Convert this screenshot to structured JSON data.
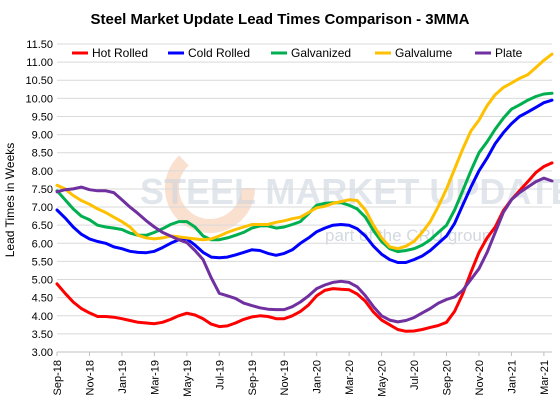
{
  "chart_data": {
    "type": "line",
    "title": "Steel Market Update Lead Times Comparison - 3MMA",
    "ylabel": "Lead Times in Weeks",
    "xlabel": "",
    "ylim": [
      3.0,
      11.5
    ],
    "yticks": [
      "3.00",
      "3.50",
      "4.00",
      "4.50",
      "5.00",
      "5.50",
      "6.00",
      "6.50",
      "7.00",
      "7.50",
      "8.00",
      "8.50",
      "9.00",
      "9.50",
      "10.00",
      "10.50",
      "11.00",
      "11.50"
    ],
    "grid": "horizontal",
    "legend_position": "top",
    "x_tick_labels": [
      "Sep-18",
      "Nov-18",
      "Jan-19",
      "Mar-19",
      "May-19",
      "Jul-19",
      "Sep-19",
      "Nov-19",
      "Jan-20",
      "Mar-20",
      "May-20",
      "Jul-20",
      "Sep-20",
      "Nov-20",
      "Jan-21",
      "Mar-21"
    ],
    "x_tick_positions": [
      0,
      2,
      4,
      6,
      8,
      10,
      12,
      14,
      16,
      18,
      20,
      22,
      24,
      26,
      28,
      30
    ],
    "watermark": {
      "line1": "STEEL MARKET UPDATE",
      "line2": "part of the CRU group"
    },
    "series": [
      {
        "name": "Hot Rolled",
        "color": "#ff0000",
        "points": [
          [
            0,
            4.88
          ],
          [
            0.5,
            4.62
          ],
          [
            1,
            4.38
          ],
          [
            1.5,
            4.2
          ],
          [
            2,
            4.08
          ],
          [
            2.5,
            3.98
          ],
          [
            3,
            3.98
          ],
          [
            3.5,
            3.96
          ],
          [
            4,
            3.92
          ],
          [
            4.5,
            3.87
          ],
          [
            5,
            3.82
          ],
          [
            5.5,
            3.8
          ],
          [
            6,
            3.78
          ],
          [
            6.5,
            3.82
          ],
          [
            7,
            3.9
          ],
          [
            7.5,
            4.0
          ],
          [
            8,
            4.07
          ],
          [
            8.5,
            4.02
          ],
          [
            9,
            3.92
          ],
          [
            9.5,
            3.77
          ],
          [
            10,
            3.7
          ],
          [
            10.5,
            3.72
          ],
          [
            11,
            3.8
          ],
          [
            11.5,
            3.9
          ],
          [
            12,
            3.97
          ],
          [
            12.5,
            4.0
          ],
          [
            13,
            3.98
          ],
          [
            13.5,
            3.92
          ],
          [
            14,
            3.92
          ],
          [
            14.5,
            4.0
          ],
          [
            15,
            4.12
          ],
          [
            15.5,
            4.3
          ],
          [
            16,
            4.55
          ],
          [
            16.5,
            4.7
          ],
          [
            17,
            4.75
          ],
          [
            17.5,
            4.73
          ],
          [
            18,
            4.72
          ],
          [
            18.5,
            4.6
          ],
          [
            19,
            4.4
          ],
          [
            19.5,
            4.1
          ],
          [
            20,
            3.88
          ],
          [
            20.5,
            3.75
          ],
          [
            21,
            3.62
          ],
          [
            21.5,
            3.57
          ],
          [
            22,
            3.58
          ],
          [
            22.5,
            3.62
          ],
          [
            23,
            3.68
          ],
          [
            23.5,
            3.73
          ],
          [
            24,
            3.82
          ],
          [
            24.5,
            4.12
          ],
          [
            25,
            4.6
          ],
          [
            25.5,
            5.2
          ],
          [
            26,
            5.75
          ],
          [
            26.5,
            6.15
          ],
          [
            27,
            6.45
          ],
          [
            27.5,
            6.9
          ],
          [
            28,
            7.2
          ],
          [
            28.5,
            7.45
          ],
          [
            29,
            7.7
          ],
          [
            29.5,
            7.95
          ],
          [
            30,
            8.12
          ],
          [
            30.5,
            8.22
          ]
        ]
      },
      {
        "name": "Cold Rolled",
        "color": "#0000ff",
        "points": [
          [
            0,
            6.92
          ],
          [
            0.5,
            6.7
          ],
          [
            1,
            6.45
          ],
          [
            1.5,
            6.25
          ],
          [
            2,
            6.12
          ],
          [
            2.5,
            6.05
          ],
          [
            3,
            6.0
          ],
          [
            3.5,
            5.9
          ],
          [
            4,
            5.85
          ],
          [
            4.5,
            5.78
          ],
          [
            5,
            5.75
          ],
          [
            5.5,
            5.74
          ],
          [
            6,
            5.78
          ],
          [
            6.5,
            5.88
          ],
          [
            7,
            6.0
          ],
          [
            7.5,
            6.1
          ],
          [
            8,
            6.12
          ],
          [
            8.5,
            5.95
          ],
          [
            9,
            5.75
          ],
          [
            9.5,
            5.62
          ],
          [
            10,
            5.6
          ],
          [
            10.5,
            5.62
          ],
          [
            11,
            5.68
          ],
          [
            11.5,
            5.75
          ],
          [
            12,
            5.82
          ],
          [
            12.5,
            5.8
          ],
          [
            13,
            5.72
          ],
          [
            13.5,
            5.67
          ],
          [
            14,
            5.72
          ],
          [
            14.5,
            5.82
          ],
          [
            15,
            6.0
          ],
          [
            15.5,
            6.15
          ],
          [
            16,
            6.32
          ],
          [
            16.5,
            6.42
          ],
          [
            17,
            6.5
          ],
          [
            17.5,
            6.52
          ],
          [
            18,
            6.5
          ],
          [
            18.5,
            6.4
          ],
          [
            19,
            6.2
          ],
          [
            19.5,
            5.92
          ],
          [
            20,
            5.7
          ],
          [
            20.5,
            5.55
          ],
          [
            21,
            5.47
          ],
          [
            21.5,
            5.47
          ],
          [
            22,
            5.55
          ],
          [
            22.5,
            5.65
          ],
          [
            23,
            5.8
          ],
          [
            23.5,
            6.0
          ],
          [
            24,
            6.2
          ],
          [
            24.5,
            6.55
          ],
          [
            25,
            7.05
          ],
          [
            25.5,
            7.55
          ],
          [
            26,
            8.0
          ],
          [
            26.5,
            8.35
          ],
          [
            27,
            8.75
          ],
          [
            27.5,
            9.05
          ],
          [
            28,
            9.3
          ],
          [
            28.5,
            9.5
          ],
          [
            29,
            9.62
          ],
          [
            29.5,
            9.75
          ],
          [
            30,
            9.88
          ],
          [
            30.5,
            9.95
          ]
        ]
      },
      {
        "name": "Galvanized",
        "color": "#00b050",
        "points": [
          [
            0,
            7.45
          ],
          [
            0.5,
            7.2
          ],
          [
            1,
            6.95
          ],
          [
            1.5,
            6.75
          ],
          [
            2,
            6.65
          ],
          [
            2.5,
            6.5
          ],
          [
            3,
            6.45
          ],
          [
            3.5,
            6.42
          ],
          [
            4,
            6.38
          ],
          [
            4.5,
            6.28
          ],
          [
            5,
            6.22
          ],
          [
            5.5,
            6.22
          ],
          [
            6,
            6.3
          ],
          [
            6.5,
            6.4
          ],
          [
            7,
            6.52
          ],
          [
            7.5,
            6.6
          ],
          [
            8,
            6.6
          ],
          [
            8.5,
            6.45
          ],
          [
            9,
            6.2
          ],
          [
            9.5,
            6.1
          ],
          [
            10,
            6.1
          ],
          [
            10.5,
            6.15
          ],
          [
            11,
            6.22
          ],
          [
            11.5,
            6.3
          ],
          [
            12,
            6.42
          ],
          [
            12.5,
            6.48
          ],
          [
            13,
            6.48
          ],
          [
            13.5,
            6.42
          ],
          [
            14,
            6.45
          ],
          [
            14.5,
            6.52
          ],
          [
            15,
            6.6
          ],
          [
            15.5,
            6.82
          ],
          [
            16,
            7.05
          ],
          [
            16.5,
            7.1
          ],
          [
            17,
            7.12
          ],
          [
            17.5,
            7.12
          ],
          [
            18,
            7.05
          ],
          [
            18.5,
            6.95
          ],
          [
            19,
            6.72
          ],
          [
            19.5,
            6.35
          ],
          [
            20,
            6.05
          ],
          [
            20.5,
            5.85
          ],
          [
            21,
            5.77
          ],
          [
            21.5,
            5.8
          ],
          [
            22,
            5.85
          ],
          [
            22.5,
            5.95
          ],
          [
            23,
            6.1
          ],
          [
            23.5,
            6.3
          ],
          [
            24,
            6.5
          ],
          [
            24.5,
            6.92
          ],
          [
            25,
            7.45
          ],
          [
            25.5,
            8.0
          ],
          [
            26,
            8.5
          ],
          [
            26.5,
            8.8
          ],
          [
            27,
            9.15
          ],
          [
            27.5,
            9.45
          ],
          [
            28,
            9.7
          ],
          [
            28.5,
            9.82
          ],
          [
            29,
            9.95
          ],
          [
            29.5,
            10.05
          ],
          [
            30,
            10.12
          ],
          [
            30.5,
            10.14
          ]
        ]
      },
      {
        "name": "Galvalume",
        "color": "#ffc000",
        "points": [
          [
            0,
            7.6
          ],
          [
            0.5,
            7.5
          ],
          [
            1,
            7.32
          ],
          [
            1.5,
            7.18
          ],
          [
            2,
            7.08
          ],
          [
            2.5,
            6.95
          ],
          [
            3,
            6.85
          ],
          [
            3.5,
            6.72
          ],
          [
            4,
            6.6
          ],
          [
            4.5,
            6.45
          ],
          [
            5,
            6.22
          ],
          [
            5.5,
            6.15
          ],
          [
            6,
            6.12
          ],
          [
            6.5,
            6.15
          ],
          [
            7,
            6.2
          ],
          [
            7.5,
            6.18
          ],
          [
            8,
            6.15
          ],
          [
            8.5,
            6.12
          ],
          [
            9,
            6.1
          ],
          [
            9.5,
            6.12
          ],
          [
            10,
            6.2
          ],
          [
            10.5,
            6.3
          ],
          [
            11,
            6.38
          ],
          [
            11.5,
            6.45
          ],
          [
            12,
            6.52
          ],
          [
            12.5,
            6.52
          ],
          [
            13,
            6.52
          ],
          [
            13.5,
            6.58
          ],
          [
            14,
            6.62
          ],
          [
            14.5,
            6.68
          ],
          [
            15,
            6.72
          ],
          [
            15.5,
            6.85
          ],
          [
            16,
            6.98
          ],
          [
            16.5,
            7.02
          ],
          [
            17,
            7.1
          ],
          [
            17.5,
            7.15
          ],
          [
            18,
            7.2
          ],
          [
            18.5,
            7.18
          ],
          [
            19,
            6.92
          ],
          [
            19.5,
            6.5
          ],
          [
            20,
            6.15
          ],
          [
            20.5,
            5.9
          ],
          [
            21,
            5.85
          ],
          [
            21.5,
            5.92
          ],
          [
            22,
            6.05
          ],
          [
            22.5,
            6.3
          ],
          [
            23,
            6.6
          ],
          [
            23.5,
            7.02
          ],
          [
            24,
            7.5
          ],
          [
            24.5,
            8.05
          ],
          [
            25,
            8.6
          ],
          [
            25.5,
            9.1
          ],
          [
            26,
            9.4
          ],
          [
            26.5,
            9.8
          ],
          [
            27,
            10.1
          ],
          [
            27.5,
            10.3
          ],
          [
            28,
            10.42
          ],
          [
            28.5,
            10.55
          ],
          [
            29,
            10.65
          ],
          [
            29.5,
            10.85
          ],
          [
            30,
            11.05
          ],
          [
            30.5,
            11.22
          ]
        ]
      },
      {
        "name": "Plate",
        "color": "#7030a0",
        "points": [
          [
            0,
            7.42
          ],
          [
            0.5,
            7.48
          ],
          [
            1,
            7.5
          ],
          [
            1.5,
            7.55
          ],
          [
            2,
            7.48
          ],
          [
            2.5,
            7.45
          ],
          [
            3,
            7.45
          ],
          [
            3.5,
            7.4
          ],
          [
            4,
            7.2
          ],
          [
            4.5,
            7.0
          ],
          [
            5,
            6.82
          ],
          [
            5.5,
            6.62
          ],
          [
            6,
            6.45
          ],
          [
            6.5,
            6.3
          ],
          [
            7,
            6.2
          ],
          [
            7.5,
            6.1
          ],
          [
            8,
            6.02
          ],
          [
            8.5,
            5.8
          ],
          [
            9,
            5.55
          ],
          [
            9.5,
            5.05
          ],
          [
            10,
            4.62
          ],
          [
            10.5,
            4.55
          ],
          [
            11,
            4.48
          ],
          [
            11.5,
            4.35
          ],
          [
            12,
            4.28
          ],
          [
            12.5,
            4.22
          ],
          [
            13,
            4.18
          ],
          [
            13.5,
            4.17
          ],
          [
            14,
            4.17
          ],
          [
            14.5,
            4.25
          ],
          [
            15,
            4.38
          ],
          [
            15.5,
            4.55
          ],
          [
            16,
            4.75
          ],
          [
            16.5,
            4.85
          ],
          [
            17,
            4.92
          ],
          [
            17.5,
            4.95
          ],
          [
            18,
            4.92
          ],
          [
            18.5,
            4.8
          ],
          [
            19,
            4.55
          ],
          [
            19.5,
            4.25
          ],
          [
            20,
            4.0
          ],
          [
            20.5,
            3.88
          ],
          [
            21,
            3.83
          ],
          [
            21.5,
            3.87
          ],
          [
            22,
            3.95
          ],
          [
            22.5,
            4.08
          ],
          [
            23,
            4.2
          ],
          [
            23.5,
            4.35
          ],
          [
            24,
            4.45
          ],
          [
            24.5,
            4.52
          ],
          [
            25,
            4.7
          ],
          [
            25.5,
            5.0
          ],
          [
            26,
            5.3
          ],
          [
            26.5,
            5.75
          ],
          [
            27,
            6.3
          ],
          [
            27.5,
            6.85
          ],
          [
            28,
            7.2
          ],
          [
            28.5,
            7.4
          ],
          [
            29,
            7.55
          ],
          [
            29.5,
            7.7
          ],
          [
            30,
            7.8
          ],
          [
            30.5,
            7.72
          ]
        ]
      }
    ]
  }
}
